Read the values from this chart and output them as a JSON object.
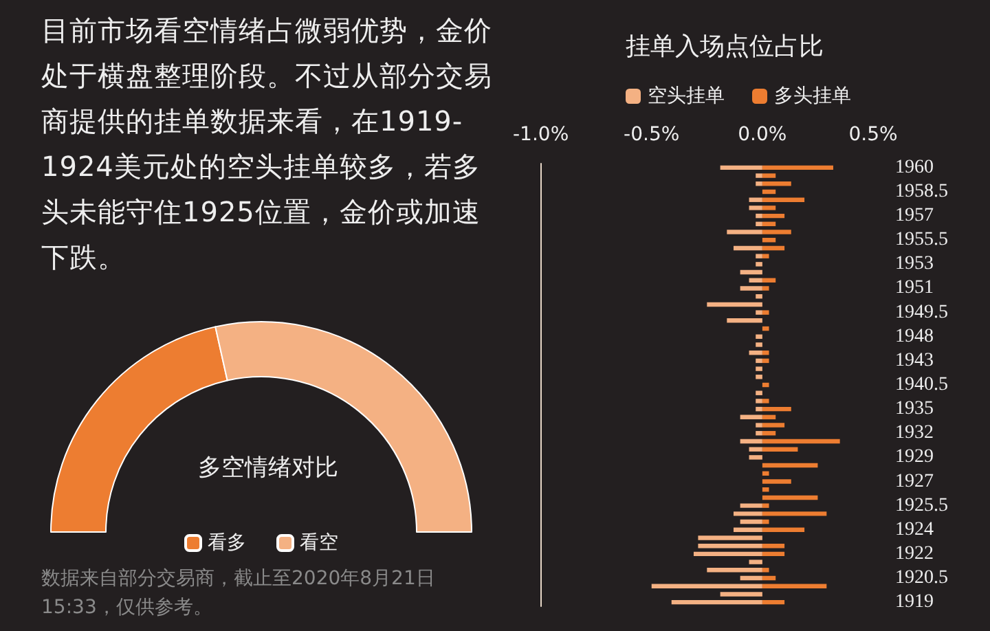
{
  "chart_data": [
    {
      "type": "other",
      "annotations": [
        "目前市场看空情绪占微弱优势，金价处于横盘整理阶段。不过从部分交易商提供的挂单数据来看，在1919-1924美元处的空头挂单较多，若多头未能守住1925位置，金价或加速下跌。"
      ]
    },
    {
      "type": "donut",
      "title": "多空情绪对比",
      "categories": [
        "看多",
        "看空"
      ],
      "values": [
        43,
        57
      ],
      "colors": [
        "#ed7d31",
        "#f4b183"
      ],
      "legend": "bottom",
      "annotations": [
        "数据来自部分交易商，截止至2020年8月21日15:33，仅供参考。"
      ]
    },
    {
      "type": "bar",
      "title": "挂单入场点位占比",
      "orientation": "horizontal",
      "stacked": true,
      "legend": "top",
      "grid": false,
      "categories": [
        "1960",
        null,
        null,
        "1958.5",
        null,
        null,
        "1957",
        null,
        null,
        "1955.5",
        null,
        null,
        "1953",
        null,
        null,
        "1951",
        null,
        null,
        "1949.5",
        null,
        null,
        "1948",
        null,
        null,
        "1943",
        null,
        null,
        "1940.5",
        null,
        null,
        "1935",
        null,
        null,
        "1932",
        null,
        null,
        "1929",
        null,
        null,
        "1927",
        null,
        null,
        "1925.5",
        null,
        null,
        "1924",
        null,
        null,
        "1922",
        null,
        null,
        "1920.5",
        null,
        null,
        "1919"
      ],
      "xlim": [
        -1.0,
        0.5
      ],
      "xticks": [
        {
          "value": -1.0,
          "label": "-1.0%"
        },
        {
          "value": -0.5,
          "label": "-0.5%"
        },
        {
          "value": 0,
          "label": "0.0%"
        },
        {
          "value": 0.5,
          "label": "0.5%"
        }
      ],
      "series": [
        {
          "name": "空头挂单",
          "color": "#f4b183",
          "values": [
            -0.19,
            -0.03,
            -0.03,
            0,
            -0.06,
            -0.06,
            -0.03,
            -0.03,
            -0.16,
            0,
            -0.13,
            -0.03,
            -0.03,
            -0.1,
            -0.06,
            -0.1,
            -0.03,
            -0.25,
            -0.03,
            -0.16,
            0,
            -0.03,
            -0.03,
            -0.06,
            -0.03,
            -0.03,
            -0.03,
            0,
            -0.03,
            -0.03,
            -0.03,
            -0.1,
            -0.03,
            -0.03,
            -0.1,
            -0.06,
            -0.06,
            0,
            0,
            0,
            0,
            0,
            -0.1,
            -0.13,
            -0.1,
            -0.13,
            -0.29,
            -0.29,
            -0.31,
            -0.06,
            -0.25,
            -0.1,
            -0.5,
            -0.19,
            -0.41
          ]
        },
        {
          "name": "多头挂单",
          "color": "#ed7d31",
          "values": [
            0.32,
            0.06,
            0.13,
            0.06,
            0.19,
            0.06,
            0.1,
            0.06,
            0.13,
            0.06,
            0.1,
            0.03,
            0,
            0,
            0.06,
            0.03,
            0,
            0,
            0.03,
            0,
            0.03,
            0,
            0,
            0.03,
            0.03,
            0,
            0,
            0.03,
            0,
            0.03,
            0.13,
            0.06,
            0.1,
            0.06,
            0.35,
            0.16,
            0,
            0.25,
            0.03,
            0.13,
            0.03,
            0.25,
            0.03,
            0.29,
            0.03,
            0.19,
            0,
            0.1,
            0.1,
            0,
            0.03,
            0.06,
            0.29,
            0,
            0.1
          ]
        }
      ]
    }
  ]
}
